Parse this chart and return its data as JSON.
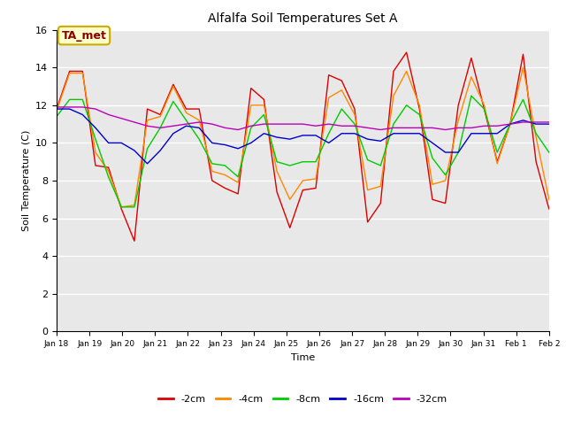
{
  "title": "Alfalfa Soil Temperatures Set A",
  "ylabel": "Soil Temperature (C)",
  "xlabel": "Time",
  "annotation": "TA_met",
  "ylim": [
    0,
    16
  ],
  "yticks": [
    0,
    2,
    4,
    6,
    8,
    10,
    12,
    14,
    16
  ],
  "colors": {
    "-2cm": "#dd0000",
    "-4cm": "#ff8800",
    "-8cm": "#00cc00",
    "-16cm": "#0000cc",
    "-32cm": "#bb00bb"
  },
  "plot_bg_color": "#e8e8e8",
  "fig_bg_color": "#ffffff",
  "legend_labels": [
    "-2cm",
    "-4cm",
    "-8cm",
    "-16cm",
    "-32cm"
  ],
  "x_tick_labels": [
    "Jan 18",
    "Jan 19",
    "Jan 20",
    "Jan 21",
    "Jan 22",
    "Jan 23",
    "Jan 24",
    "Jan 25",
    "Jan 26",
    "Jan 27",
    "Jan 28",
    "Jan 29",
    "Jan 30",
    "Jan 31",
    "Feb 1",
    "Feb 2"
  ],
  "series": {
    "-2cm": [
      11.8,
      13.8,
      13.8,
      8.8,
      8.7,
      6.5,
      4.8,
      11.8,
      11.5,
      13.1,
      11.8,
      11.8,
      8.0,
      7.6,
      7.3,
      12.9,
      12.3,
      7.4,
      5.5,
      7.5,
      7.6,
      13.6,
      13.3,
      11.8,
      5.8,
      6.8,
      13.8,
      14.8,
      11.8,
      7.0,
      6.8,
      12.0,
      14.5,
      11.8,
      9.0,
      11.0,
      14.7,
      9.0,
      6.5
    ],
    "-4cm": [
      11.7,
      13.7,
      13.7,
      9.5,
      8.5,
      6.6,
      6.7,
      11.2,
      11.4,
      13.0,
      11.6,
      11.2,
      8.5,
      8.3,
      7.9,
      12.0,
      12.0,
      8.5,
      7.0,
      8.0,
      8.1,
      12.4,
      12.8,
      11.5,
      7.5,
      7.7,
      12.5,
      13.8,
      12.0,
      7.8,
      8.0,
      11.2,
      13.5,
      12.0,
      8.9,
      11.0,
      14.0,
      10.3,
      7.0
    ],
    "-8cm": [
      11.4,
      12.3,
      12.3,
      10.2,
      8.2,
      6.6,
      6.6,
      9.7,
      10.8,
      12.2,
      11.2,
      10.2,
      8.9,
      8.8,
      8.2,
      10.8,
      11.5,
      9.0,
      8.8,
      9.0,
      9.0,
      10.5,
      11.8,
      11.0,
      9.1,
      8.8,
      11.0,
      12.0,
      11.5,
      9.2,
      8.3,
      9.5,
      12.5,
      11.8,
      9.5,
      11.0,
      12.3,
      10.5,
      9.5
    ],
    "-16cm": [
      11.8,
      11.8,
      11.5,
      10.8,
      10.0,
      10.0,
      9.6,
      8.9,
      9.6,
      10.5,
      10.9,
      10.8,
      10.0,
      9.9,
      9.7,
      10.0,
      10.5,
      10.3,
      10.2,
      10.4,
      10.4,
      10.0,
      10.5,
      10.5,
      10.2,
      10.1,
      10.5,
      10.5,
      10.5,
      10.0,
      9.5,
      9.5,
      10.5,
      10.5,
      10.5,
      11.0,
      11.2,
      11.0,
      11.0
    ],
    "-32cm": [
      11.9,
      11.9,
      11.9,
      11.8,
      11.5,
      11.3,
      11.1,
      10.9,
      10.8,
      10.9,
      11.0,
      11.1,
      11.0,
      10.8,
      10.7,
      10.9,
      11.0,
      11.0,
      11.0,
      11.0,
      10.9,
      11.0,
      10.9,
      10.9,
      10.8,
      10.7,
      10.8,
      10.8,
      10.8,
      10.8,
      10.7,
      10.8,
      10.8,
      10.9,
      10.9,
      11.0,
      11.1,
      11.1,
      11.1
    ]
  },
  "figsize": [
    6.4,
    4.8
  ],
  "dpi": 100
}
